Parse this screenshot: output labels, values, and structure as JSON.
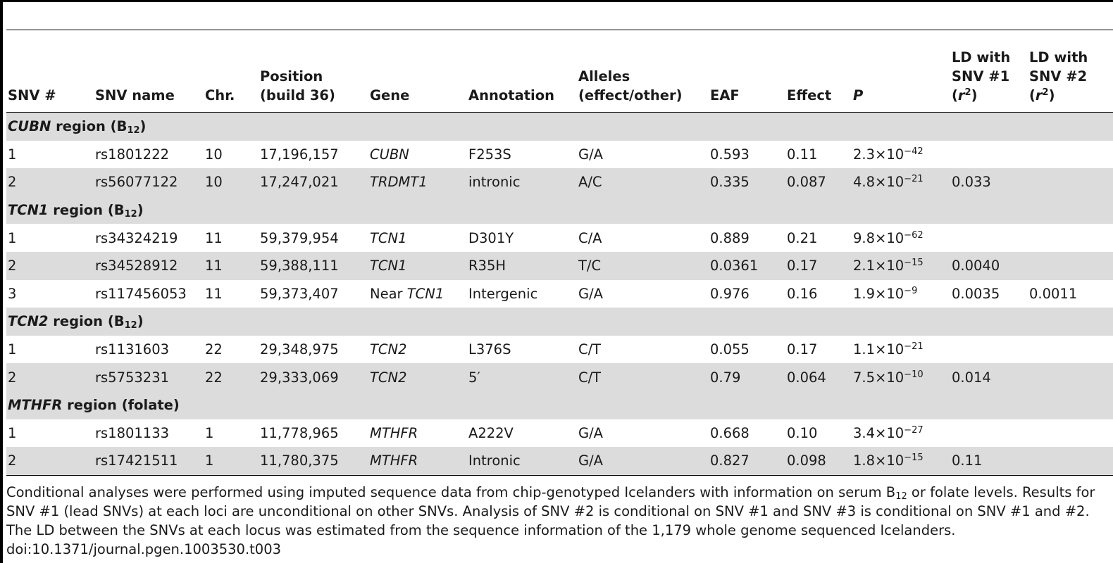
{
  "headers": {
    "snv_num": "SNV #",
    "snv_name": "SNV name",
    "chr": "Chr.",
    "position_l1": "Position",
    "position_l2": "(build 36)",
    "gene": "Gene",
    "annotation": "Annotation",
    "alleles_l1": "Alleles",
    "alleles_l2": "(effect/other)",
    "eaf": "EAF",
    "effect": "Effect",
    "p": "P",
    "ld1_l1": "LD with",
    "ld1_l2": "SNV #1",
    "ld2_l1": "LD with",
    "ld2_l2": "SNV #2",
    "r_open": "(",
    "r_var": "r",
    "r_exp": "2",
    "r_close": ")"
  },
  "sections": [
    {
      "gene_label": "CUBN",
      "label_mid": " region (B",
      "label_sub": "12",
      "label_end": ")",
      "rows": [
        {
          "snv": "1",
          "name": "rs1801222",
          "chr": "10",
          "pos": "17,196,157",
          "gene_prefix": "",
          "gene": "CUBN",
          "annotation": "F253S",
          "alleles": "G/A",
          "eaf": "0.593",
          "effect": "0.11",
          "p_mant": "2.3",
          "p_times": "×10",
          "p_exp": "−42",
          "ld1": "",
          "ld2": ""
        },
        {
          "snv": "2",
          "name": "rs56077122",
          "chr": "10",
          "pos": "17,247,021",
          "gene_prefix": "",
          "gene": "TRDMT1",
          "annotation": "intronic",
          "alleles": "A/C",
          "eaf": "0.335",
          "effect": "0.087",
          "p_mant": "4.8",
          "p_times": "×10",
          "p_exp": "−21",
          "ld1": "0.033",
          "ld2": ""
        }
      ]
    },
    {
      "gene_label": "TCN1",
      "label_mid": " region (B",
      "label_sub": "12",
      "label_end": ")",
      "rows": [
        {
          "snv": "1",
          "name": "rs34324219",
          "chr": "11",
          "pos": "59,379,954",
          "gene_prefix": "",
          "gene": "TCN1",
          "annotation": "D301Y",
          "alleles": "C/A",
          "eaf": "0.889",
          "effect": "0.21",
          "p_mant": "9.8",
          "p_times": "×10",
          "p_exp": "−62",
          "ld1": "",
          "ld2": ""
        },
        {
          "snv": "2",
          "name": "rs34528912",
          "chr": "11",
          "pos": "59,388,111",
          "gene_prefix": "",
          "gene": "TCN1",
          "annotation": "R35H",
          "alleles": "T/C",
          "eaf": "0.0361",
          "effect": "0.17",
          "p_mant": "2.1",
          "p_times": "×10",
          "p_exp": "−15",
          "ld1": "0.0040",
          "ld2": ""
        },
        {
          "snv": "3",
          "name": "rs117456053",
          "chr": "11",
          "pos": "59,373,407",
          "gene_prefix": "Near ",
          "gene": "TCN1",
          "annotation": "Intergenic",
          "alleles": "G/A",
          "eaf": "0.976",
          "effect": "0.16",
          "p_mant": "1.9",
          "p_times": "×10",
          "p_exp": "−9",
          "ld1": "0.0035",
          "ld2": "0.0011"
        }
      ]
    },
    {
      "gene_label": "TCN2",
      "label_mid": " region (B",
      "label_sub": "12",
      "label_end": ")",
      "rows": [
        {
          "snv": "1",
          "name": "rs1131603",
          "chr": "22",
          "pos": "29,348,975",
          "gene_prefix": "",
          "gene": "TCN2",
          "annotation": "L376S",
          "alleles": "C/T",
          "eaf": "0.055",
          "effect": "0.17",
          "p_mant": "1.1",
          "p_times": "×10",
          "p_exp": "−21",
          "ld1": "",
          "ld2": ""
        },
        {
          "snv": "2",
          "name": "rs5753231",
          "chr": "22",
          "pos": "29,333,069",
          "gene_prefix": "",
          "gene": "TCN2",
          "annotation": "5′",
          "alleles": "C/T",
          "eaf": "0.79",
          "effect": "0.064",
          "p_mant": "7.5",
          "p_times": "×10",
          "p_exp": "−10",
          "ld1": "0.014",
          "ld2": ""
        }
      ]
    },
    {
      "gene_label": "MTHFR",
      "label_mid": " region (folate)",
      "label_sub": "",
      "label_end": "",
      "rows": [
        {
          "snv": "1",
          "name": "rs1801133",
          "chr": "1",
          "pos": "11,778,965",
          "gene_prefix": "",
          "gene": "MTHFR",
          "annotation": "A222V",
          "alleles": "G/A",
          "eaf": "0.668",
          "effect": "0.10",
          "p_mant": "3.4",
          "p_times": "×10",
          "p_exp": "−27",
          "ld1": "",
          "ld2": ""
        },
        {
          "snv": "2",
          "name": "rs17421511",
          "chr": "1",
          "pos": "11,780,375",
          "gene_prefix": "",
          "gene": "MTHFR",
          "annotation": "Intronic",
          "alleles": "G/A",
          "eaf": "0.827",
          "effect": "0.098",
          "p_mant": "1.8",
          "p_times": "×10",
          "p_exp": "−15",
          "ld1": "0.11",
          "ld2": ""
        }
      ]
    }
  ],
  "footnote": {
    "part1": "Conditional analyses were performed using imputed sequence data from chip-genotyped Icelanders with information on serum B",
    "sub": "12",
    "part2": " or folate levels. Results for SNV #1 (lead SNVs) at each loci are unconditional on other SNVs. Analysis of SNV #2 is conditional on SNV #1 and SNV #3 is conditional on SNV #1 and #2. The LD between the SNVs at each locus was estimated from the sequence information of the 1,179 whole genome sequenced Icelanders.",
    "doi": "doi:10.1371/journal.pgen.1003530.t003"
  }
}
